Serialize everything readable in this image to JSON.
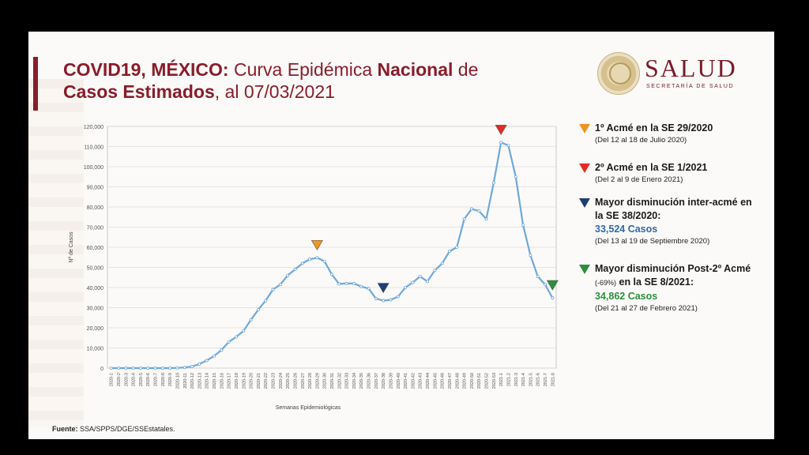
{
  "title": {
    "part1": "COVID19, MÉXICO:",
    "part2": " Curva Epidémica ",
    "part3": "Nacional",
    "part4": " de",
    "part5": "Casos Estimados",
    "part6": ", al 07/03/2021"
  },
  "logo": {
    "name": "SALUD",
    "subtitle": "SECRETARÍA DE SALUD"
  },
  "source": {
    "label": "Fuente:",
    "text": " SSA/SPPS/DGE/SSEstatales."
  },
  "legend": [
    {
      "color": "#f0951f",
      "title": "1º Acmé en la SE 29/2020",
      "detail": "(Del 12 al 18 de Julio 2020)"
    },
    {
      "color": "#e32b23",
      "title": "2º Acmé en la SE 1/2021",
      "detail": "(Del 2 al 9 de Enero 2021)"
    },
    {
      "color": "#1d3f74",
      "title": "Mayor disminución inter-acmé en la SE 38/2020:",
      "value": "33,524 Casos",
      "value_color": "#2f6aa8",
      "detail": "(Del 13 al 19 de Septiembre 2020)"
    },
    {
      "color": "#2d8f3c",
      "title": "Mayor disminución Post-2º Acmé",
      "title_small": "(-69%)",
      "title_end": "en la SE 8/2021:",
      "value": "34,862 Casos",
      "value_color": "#2d8f3c",
      "detail": "(Del 21 al 27 de Febrero 2021)"
    }
  ],
  "chart_data": {
    "type": "line",
    "xlabel": "Semanas Epidemiológicas",
    "ylabel": "Nº de Casos",
    "ylim": [
      0,
      120000
    ],
    "yticks": [
      "0",
      "10,000",
      "20,000",
      "30,000",
      "40,000",
      "50,000",
      "60,000",
      "70,000",
      "80,000",
      "90,000",
      "100,000",
      "110,000",
      "120,000"
    ],
    "grid": true,
    "line_color": "#6fa8dc",
    "categories": [
      "2020-1",
      "2020-2",
      "2020-3",
      "2020-4",
      "2020-5",
      "2020-6",
      "2020-7",
      "2020-8",
      "2020-9",
      "2020-10",
      "2020-11",
      "2020-12",
      "2020-13",
      "2020-14",
      "2020-15",
      "2020-16",
      "2020-17",
      "2020-18",
      "2020-19",
      "2020-20",
      "2020-21",
      "2020-22",
      "2020-23",
      "2020-24",
      "2020-25",
      "2020-26",
      "2020-27",
      "2020-28",
      "2020-29",
      "2020-30",
      "2020-31",
      "2020-32",
      "2020-33",
      "2020-34",
      "2020-35",
      "2020-36",
      "2020-37",
      "2020-38",
      "2020-39",
      "2020-40",
      "2020-41",
      "2020-42",
      "2020-43",
      "2020-44",
      "2020-45",
      "2020-46",
      "2020-47",
      "2020-48",
      "2020-49",
      "2020-50",
      "2020-51",
      "2020-52",
      "2020-53",
      "2021-1",
      "2021-2",
      "2021-3",
      "2021-4",
      "2021-5",
      "2021-6",
      "2021-7",
      "2021-8"
    ],
    "values": [
      0,
      0,
      0,
      0,
      0,
      0,
      0,
      0,
      0,
      100,
      300,
      800,
      2000,
      3800,
      6000,
      9000,
      13000,
      15500,
      18500,
      24000,
      29000,
      33500,
      39000,
      41500,
      46000,
      49000,
      52000,
      54000,
      54800,
      53000,
      46500,
      41800,
      42000,
      42000,
      40500,
      39500,
      34500,
      33524,
      33900,
      35500,
      40000,
      42500,
      45500,
      43000,
      48500,
      52000,
      58000,
      60000,
      74000,
      79000,
      78000,
      74000,
      92000,
      112000,
      110500,
      95000,
      71000,
      56000,
      45500,
      41500,
      34862
    ],
    "markers": [
      {
        "category": "2020-29",
        "color": "#f0951f"
      },
      {
        "category": "2021-1",
        "color": "#e32b23"
      },
      {
        "category": "2020-38",
        "color": "#1d3f74"
      },
      {
        "category": "2021-8",
        "color": "#2d8f3c"
      }
    ]
  }
}
